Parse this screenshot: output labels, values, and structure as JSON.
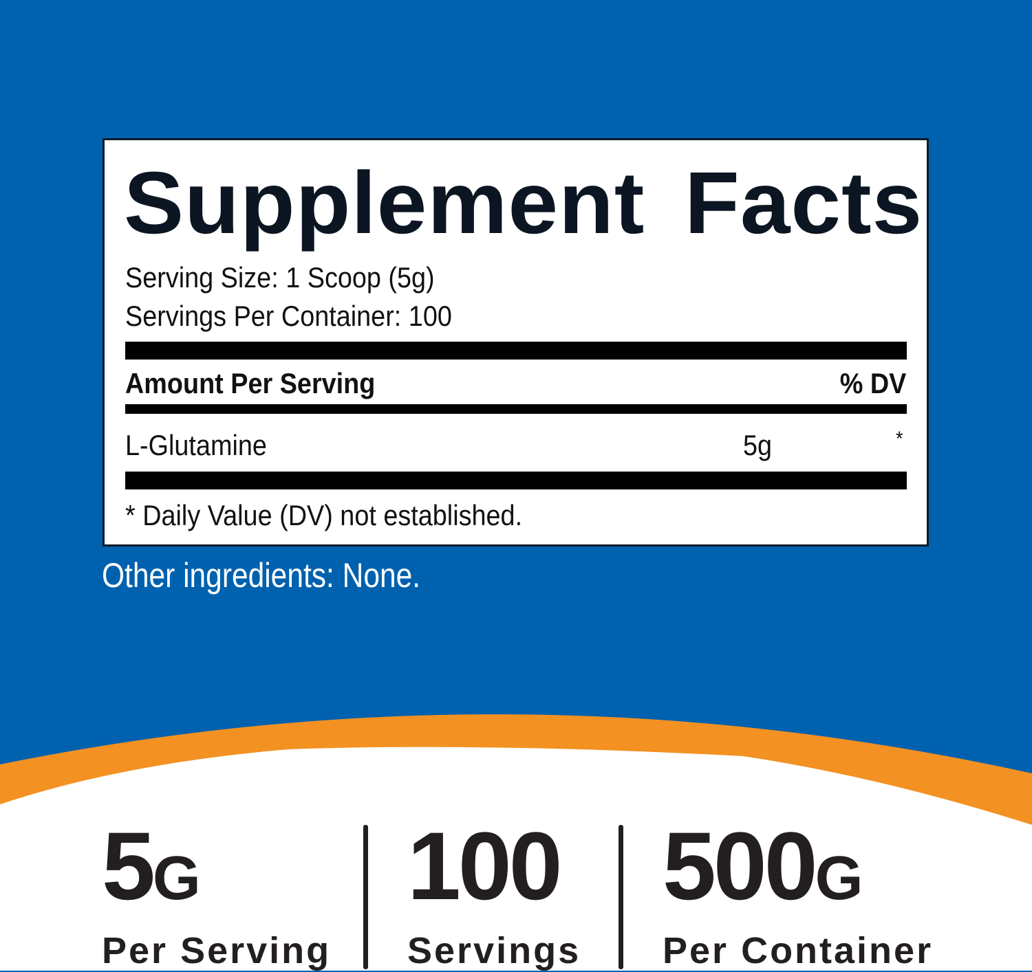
{
  "colors": {
    "background": "#0061ae",
    "accent": "#f39122",
    "panel": "#ffffff",
    "text": "#0c1522"
  },
  "facts": {
    "title": "Supplement Facts",
    "serving_size": "Serving Size: 1 Scoop (5g)",
    "servings_per_container": "Servings Per Container: 100",
    "amount_header": "Amount Per Serving",
    "dv_header": "% DV",
    "ingredient": {
      "name": "L-Glutamine",
      "amount": "5g",
      "dv": "*"
    },
    "footnote": "* Daily Value (DV) not established."
  },
  "other_ingredients": "Other ingredients: None.",
  "stats": [
    {
      "value": "5",
      "unit": "G",
      "label": "Per Serving"
    },
    {
      "value": "100",
      "unit": "",
      "label": "Servings"
    },
    {
      "value": "500",
      "unit": "G",
      "label": "Per Container"
    }
  ]
}
